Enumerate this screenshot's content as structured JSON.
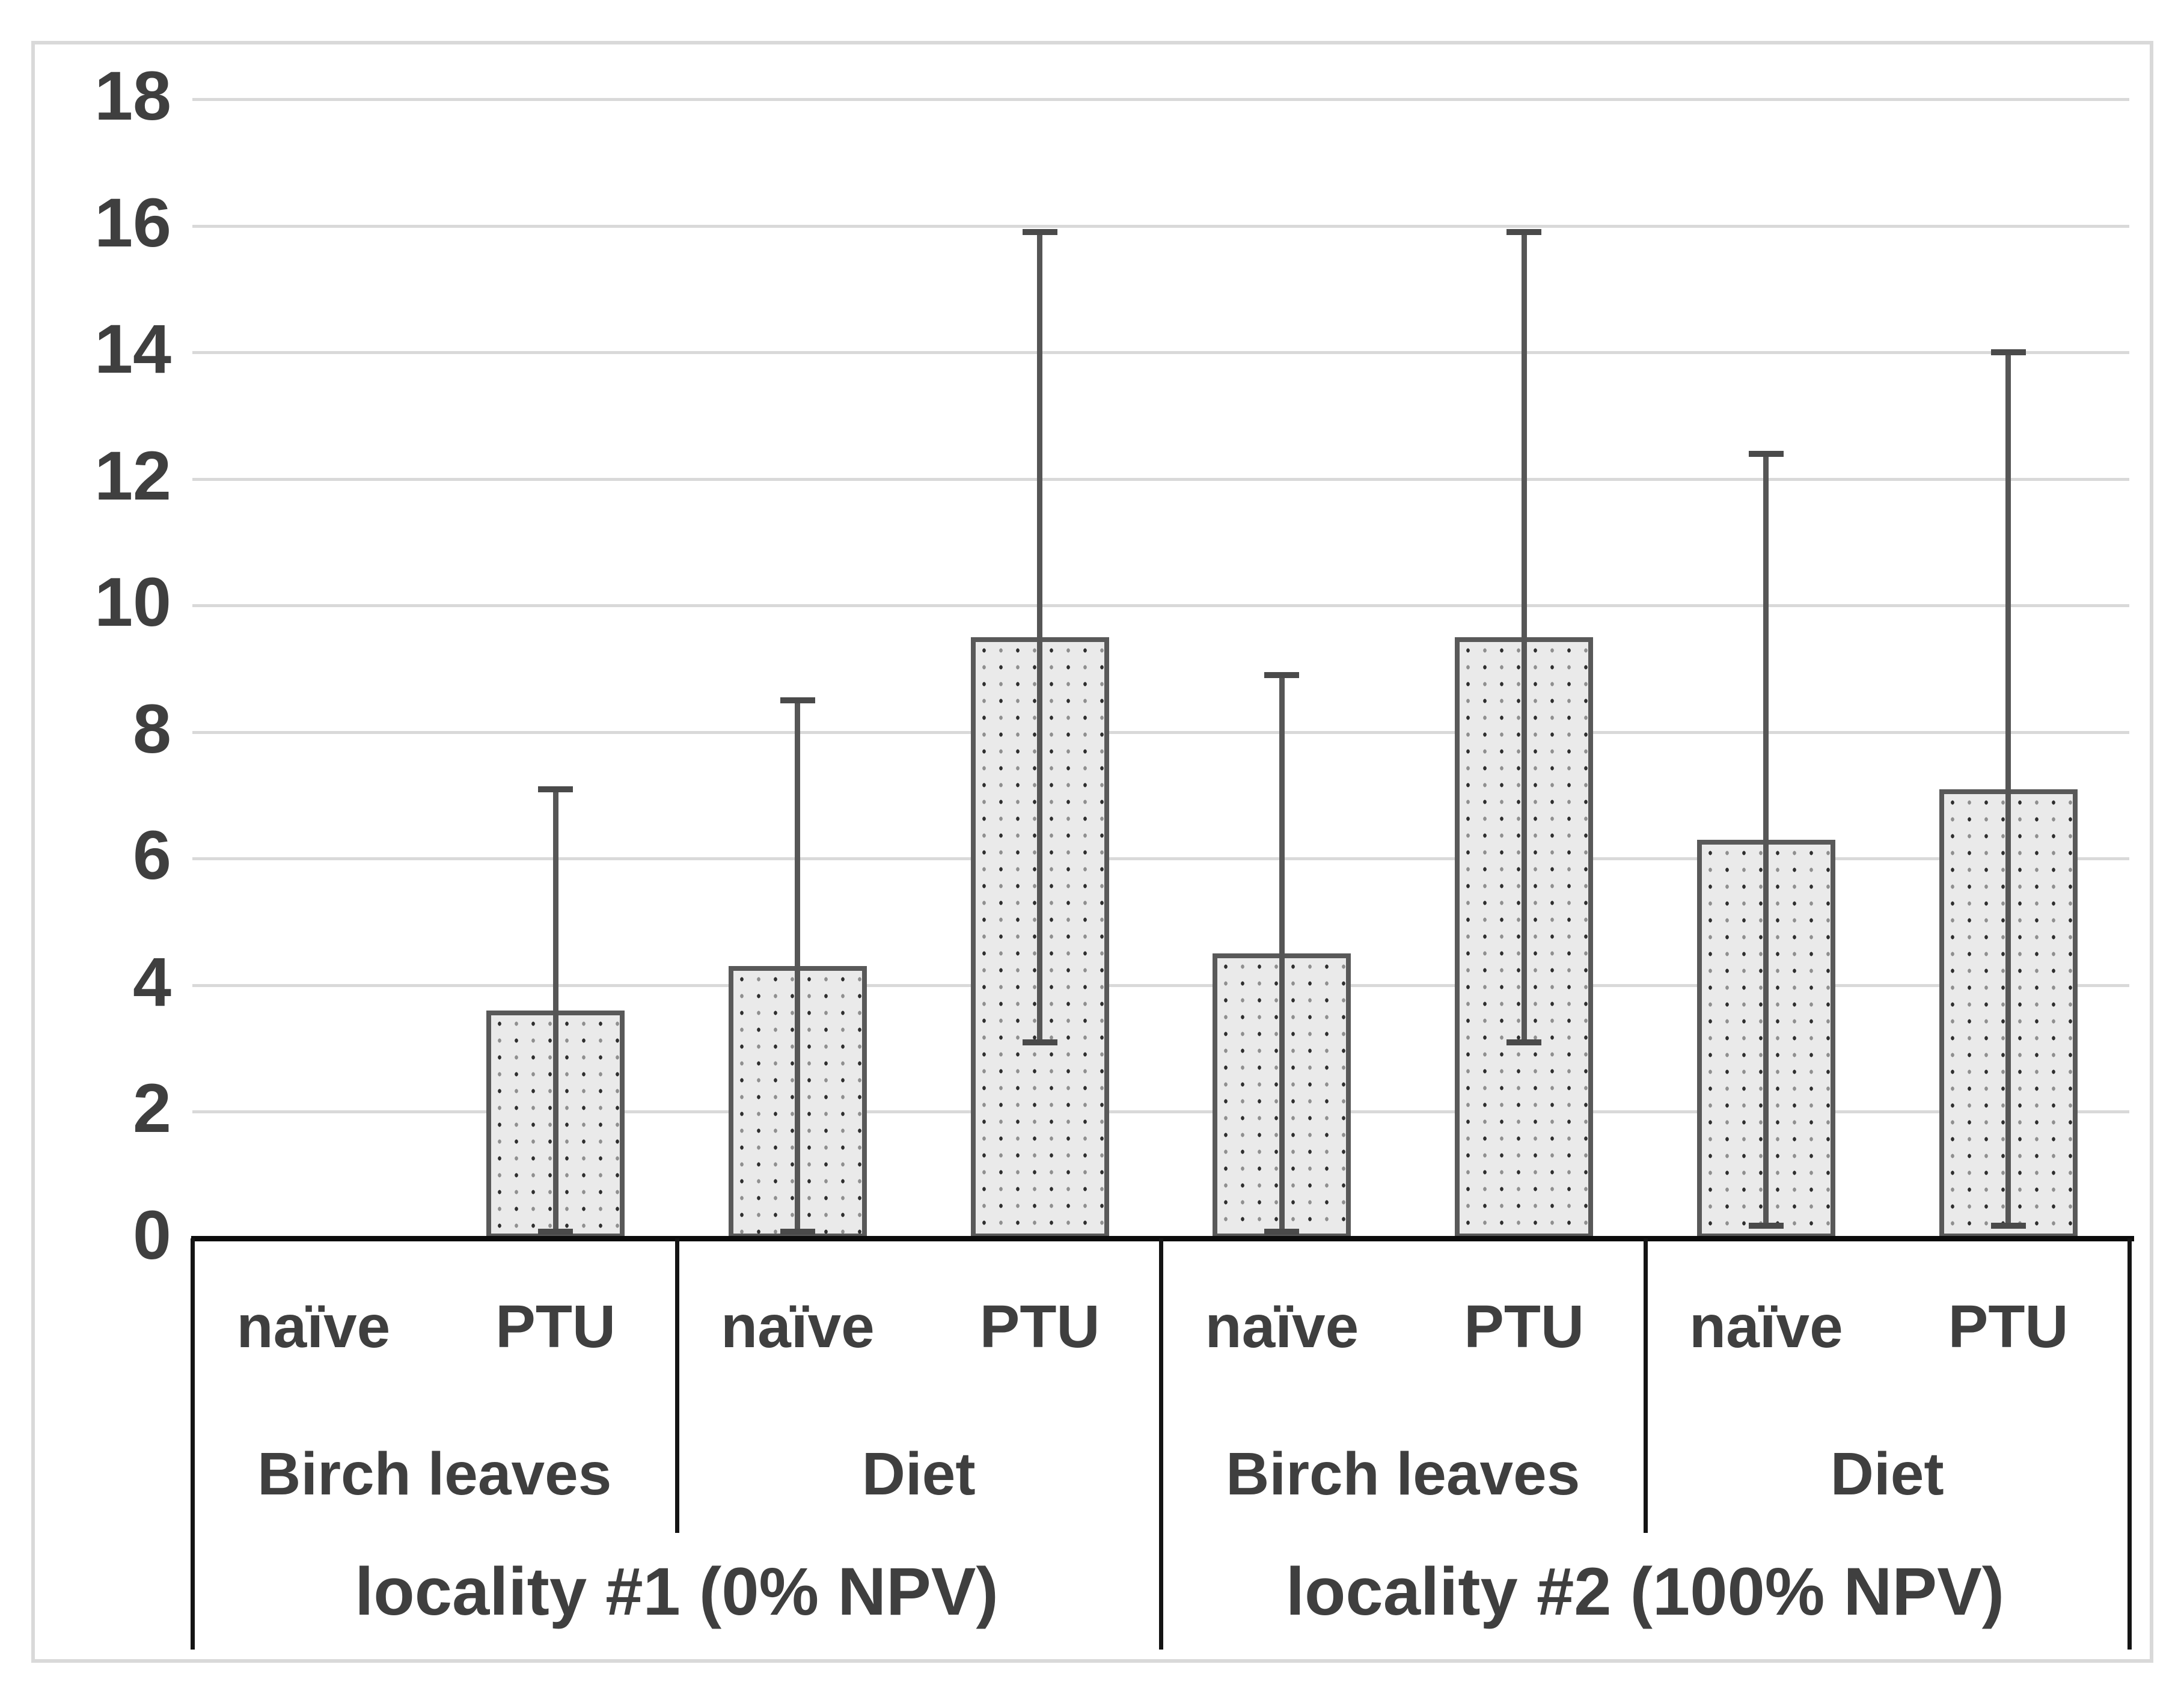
{
  "figure": {
    "background": "#ffffff",
    "border_color": "#d9d9d9"
  },
  "colors": {
    "text": "#3f3f3f",
    "gridline": "#d9d9d9",
    "axis_line": "#0c0c0c",
    "bar_fill": "#eaeaea",
    "bar_border": "#595959",
    "bar_dot_dark": "#2f2f2f",
    "bar_dot_light": "#8f8f8f",
    "error_bar": "#565656"
  },
  "chart_data": {
    "type": "bar",
    "title": "",
    "xlabel": "",
    "ylabel": "",
    "ylim": [
      0,
      18
    ],
    "grid": true,
    "legend_position": "none",
    "bar_pattern": "dotted",
    "y_axis": {
      "min": 0,
      "max": 18,
      "step": 2,
      "ticks": [
        0,
        2,
        4,
        6,
        8,
        10,
        12,
        14,
        16,
        18
      ]
    },
    "bars": [
      {
        "treatment": "naïve",
        "food": "Birch leaves",
        "locality": "locality #1 (0% NPV)",
        "value": 0,
        "err_low": null,
        "err_high": null
      },
      {
        "treatment": "PTU",
        "food": "Birch leaves",
        "locality": "locality #1 (0% NPV)",
        "value": 3.6,
        "err_low": 0.1,
        "err_high": 7.1
      },
      {
        "treatment": "naïve",
        "food": "Diet",
        "locality": "locality #1 (0% NPV)",
        "value": 4.3,
        "err_low": 0.1,
        "err_high": 8.5
      },
      {
        "treatment": "PTU",
        "food": "Diet",
        "locality": "locality #1 (0% NPV)",
        "value": 9.5,
        "err_low": 3.1,
        "err_high": 15.9
      },
      {
        "treatment": "naïve",
        "food": "Birch leaves",
        "locality": "locality #2 (100% NPV)",
        "value": 4.5,
        "err_low": 0.1,
        "err_high": 8.9
      },
      {
        "treatment": "PTU",
        "food": "Birch leaves",
        "locality": "locality #2 (100% NPV)",
        "value": 9.5,
        "err_low": 3.1,
        "err_high": 15.9
      },
      {
        "treatment": "naïve",
        "food": "Diet",
        "locality": "locality #2 (100% NPV)",
        "value": 6.3,
        "err_low": 0.2,
        "err_high": 12.4
      },
      {
        "treatment": "PTU",
        "food": "Diet",
        "locality": "locality #2 (100% NPV)",
        "value": 7.1,
        "err_low": 0.2,
        "err_high": 14.0
      }
    ],
    "x_axis_rows": {
      "row1": [
        "naïve",
        "PTU",
        "naïve",
        "PTU",
        "naïve",
        "PTU",
        "naïve",
        "PTU"
      ],
      "row2": [
        "Birch leaves",
        "Diet",
        "Birch leaves",
        "Diet"
      ],
      "row3": [
        "locality #1 (0% NPV)",
        "locality #2 (100% NPV)"
      ]
    }
  }
}
